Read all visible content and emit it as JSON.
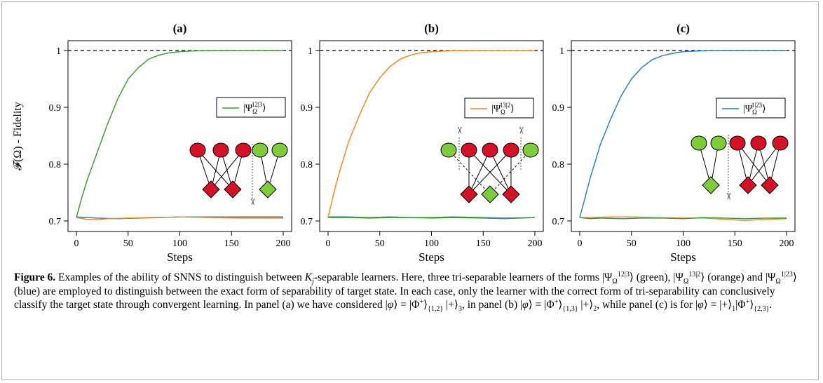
{
  "chart_data": [
    {
      "type": "line",
      "panel_label": "(a)",
      "ylabel": "𝓕(Ω) - Fidelity",
      "xlabel": "Steps",
      "xlim": [
        0,
        200
      ],
      "ylim": [
        0.7,
        1.0
      ],
      "x_ticks": [
        "0",
        "50",
        "100",
        "150",
        "200"
      ],
      "y_ticks": [
        "0.7",
        "0.8",
        "0.9",
        "1"
      ],
      "reference_line": 1.0,
      "legend": "|Ψ_Ω^{12|3}⟩",
      "legend_color": "#3aa033",
      "series": [
        {
          "name": "|Ψ_Ω^{12|3}⟩",
          "color": "#3aa033",
          "x": [
            0,
            5,
            10,
            20,
            30,
            40,
            50,
            60,
            70,
            80,
            90,
            100,
            110,
            120,
            140,
            160,
            180,
            200
          ],
          "y": [
            0.706,
            0.74,
            0.77,
            0.82,
            0.87,
            0.915,
            0.95,
            0.97,
            0.985,
            0.992,
            0.996,
            0.998,
            0.999,
            0.9995,
            1.0,
            1.0,
            1.0,
            1.0
          ]
        },
        {
          "name": "orange",
          "color": "#f28a1e",
          "x": [
            0,
            10,
            20,
            30,
            50,
            70,
            100,
            130,
            160,
            200
          ],
          "y": [
            0.706,
            0.703,
            0.702,
            0.704,
            0.705,
            0.706,
            0.707,
            0.706,
            0.705,
            0.705
          ]
        },
        {
          "name": "blue",
          "color": "#2f7ec0",
          "x": [
            0,
            10,
            20,
            40,
            60,
            80,
            100,
            130,
            160,
            200
          ],
          "y": [
            0.707,
            0.706,
            0.705,
            0.704,
            0.705,
            0.706,
            0.707,
            0.707,
            0.707,
            0.707
          ]
        }
      ]
    },
    {
      "type": "line",
      "panel_label": "(b)",
      "xlabel": "Steps",
      "xlim": [
        0,
        200
      ],
      "ylim": [
        0.7,
        1.0
      ],
      "x_ticks": [
        "0",
        "50",
        "100",
        "150",
        "200"
      ],
      "y_ticks": [
        "0.7",
        "0.8",
        "0.9",
        "1"
      ],
      "reference_line": 1.0,
      "legend": "|Ψ_Ω^{13|2}⟩",
      "legend_color": "#f28a1e",
      "series": [
        {
          "name": "|Ψ_Ω^{13|2}⟩",
          "color": "#f28a1e",
          "x": [
            0,
            5,
            10,
            20,
            30,
            40,
            50,
            60,
            70,
            80,
            90,
            100,
            120,
            140,
            160,
            180,
            200
          ],
          "y": [
            0.706,
            0.745,
            0.78,
            0.84,
            0.885,
            0.925,
            0.952,
            0.972,
            0.985,
            0.992,
            0.996,
            0.998,
            0.9995,
            1.0,
            1.0,
            1.0,
            1.0
          ]
        },
        {
          "name": "green",
          "color": "#3aa033",
          "x": [
            0,
            20,
            40,
            60,
            80,
            100,
            120,
            150,
            170,
            200
          ],
          "y": [
            0.706,
            0.706,
            0.705,
            0.706,
            0.706,
            0.705,
            0.706,
            0.705,
            0.704,
            0.706
          ]
        },
        {
          "name": "blue",
          "color": "#2f7ec0",
          "x": [
            0,
            20,
            40,
            60,
            80,
            100,
            120,
            150,
            170,
            200
          ],
          "y": [
            0.707,
            0.707,
            0.706,
            0.707,
            0.706,
            0.706,
            0.707,
            0.706,
            0.705,
            0.706
          ]
        }
      ]
    },
    {
      "type": "line",
      "panel_label": "(c)",
      "xlabel": "Steps",
      "xlim": [
        0,
        200
      ],
      "ylim": [
        0.7,
        1.0
      ],
      "x_ticks": [
        "0",
        "50",
        "100",
        "150",
        "200"
      ],
      "y_ticks": [
        "0.7",
        "0.8",
        "0.9",
        "1"
      ],
      "reference_line": 1.0,
      "legend": "|Ψ_Ω^{1|23}⟩",
      "legend_color": "#2f7ec0",
      "series": [
        {
          "name": "|Ψ_Ω^{1|23}⟩",
          "color": "#2f7ec0",
          "x": [
            0,
            5,
            10,
            20,
            30,
            40,
            50,
            60,
            70,
            80,
            90,
            100,
            120,
            140,
            160,
            180,
            200
          ],
          "y": [
            0.706,
            0.74,
            0.775,
            0.835,
            0.88,
            0.92,
            0.95,
            0.97,
            0.984,
            0.991,
            0.995,
            0.998,
            0.9995,
            1.0,
            1.0,
            1.0,
            1.0
          ]
        },
        {
          "name": "green",
          "color": "#3aa033",
          "x": [
            0,
            10,
            20,
            40,
            60,
            80,
            100,
            120,
            140,
            160,
            180,
            200
          ],
          "y": [
            0.706,
            0.704,
            0.705,
            0.704,
            0.705,
            0.705,
            0.704,
            0.706,
            0.705,
            0.704,
            0.705,
            0.705
          ]
        },
        {
          "name": "orange",
          "color": "#f28a1e",
          "x": [
            0,
            10,
            30,
            50,
            70,
            100,
            120,
            140,
            160,
            180,
            200
          ],
          "y": [
            0.706,
            0.706,
            0.707,
            0.707,
            0.706,
            0.705,
            0.705,
            0.703,
            0.701,
            0.703,
            0.704
          ]
        }
      ]
    }
  ],
  "colors": {
    "red_node": "#d41127",
    "green_node": "#7fcc3a",
    "green": "#3aa033",
    "orange": "#f28a1e",
    "blue": "#2f7ec0"
  },
  "icons": [
    "scissors-icon"
  ],
  "caption": {
    "label": "Figure 6.",
    "text_1": " Examples of the ability of SNNS to distinguish between ",
    "kj": "K",
    "kj_sub": "j",
    "text_2": "-separable learners. Here, three tri-separable learners of the forms ",
    "text_3": " (green), ",
    "text_4": " (orange) and ",
    "text_5": " (blue) are employed to distinguish between the exact form of separability of target state. In each case, only the learner with the correct form of tri-separability can conclusively classify the target state through convergent learning. In panel (a) we have considered ",
    "text_6": ", in panel (b) ",
    "text_7": ", while panel (c) is for ",
    "text_8": "."
  }
}
